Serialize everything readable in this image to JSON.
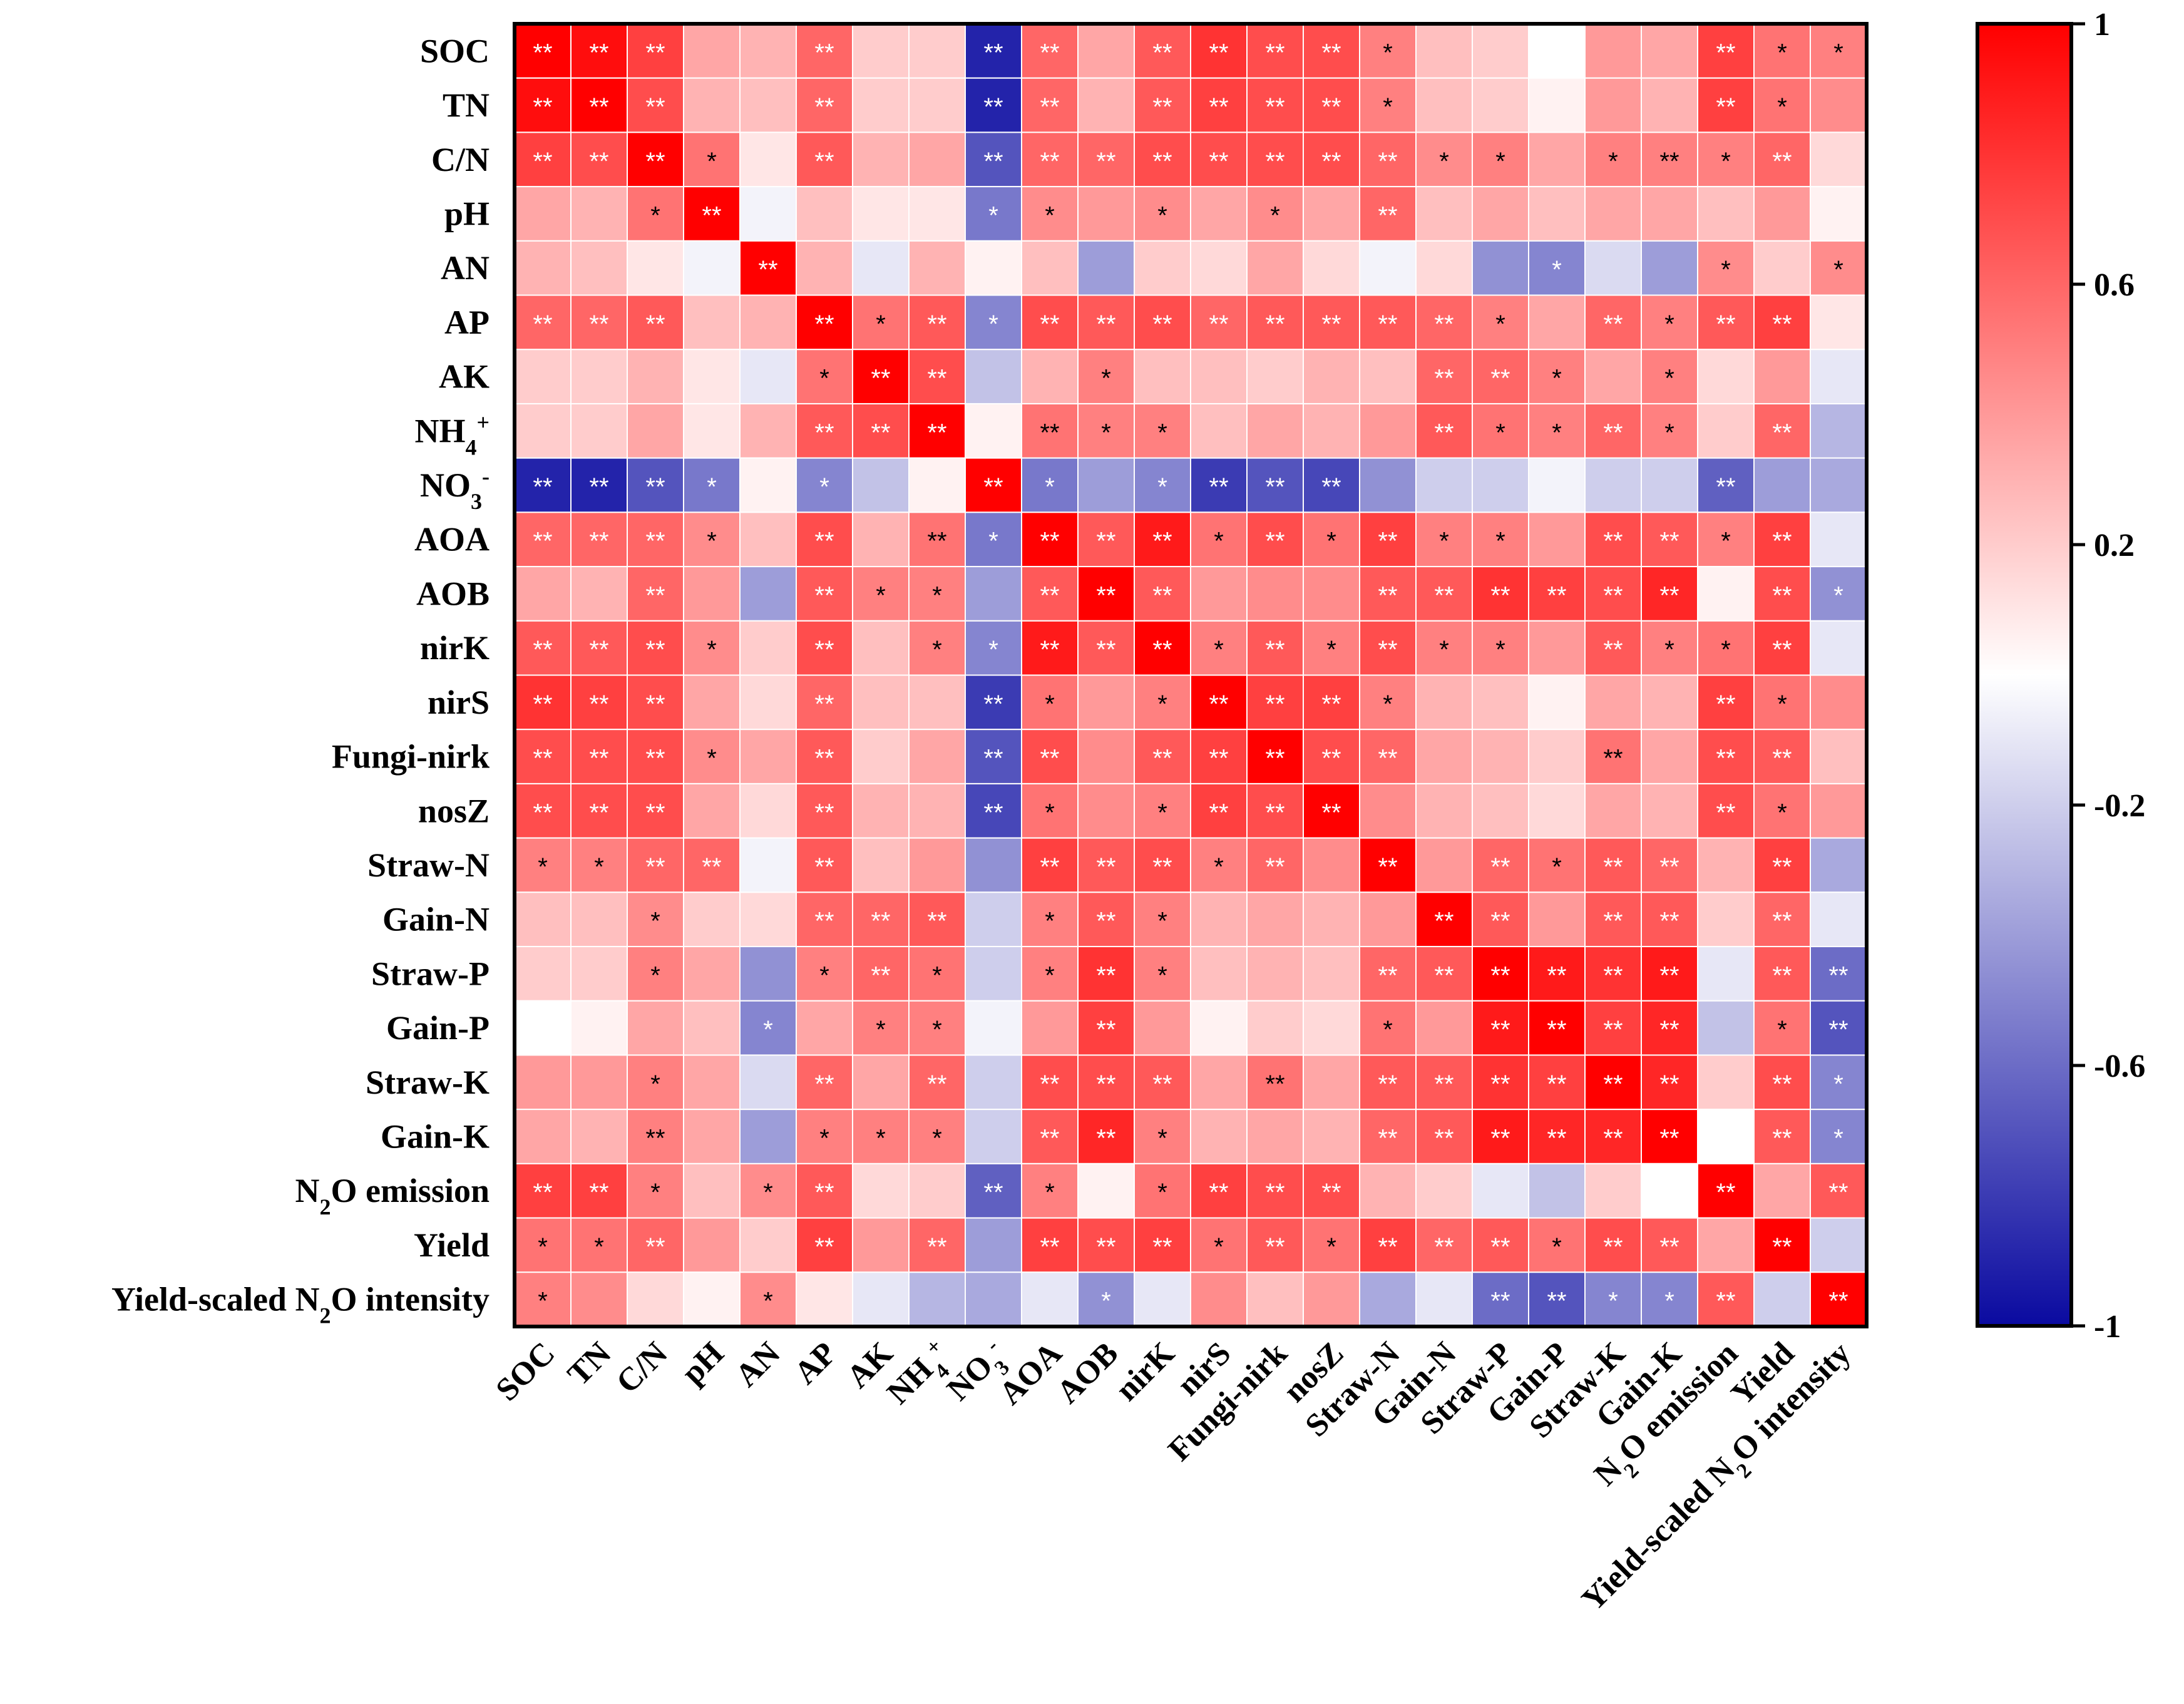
{
  "chart_data": {
    "type": "heatmap",
    "title": "",
    "variables": [
      {
        "key": "SOC",
        "label": "SOC"
      },
      {
        "key": "TN",
        "label": "TN"
      },
      {
        "key": "C/N",
        "label": "C/N"
      },
      {
        "key": "pH",
        "label": "pH"
      },
      {
        "key": "AN",
        "label": "AN"
      },
      {
        "key": "AP",
        "label": "AP"
      },
      {
        "key": "AK",
        "label": "AK"
      },
      {
        "key": "NH4+",
        "label": "NH",
        "sub": "4",
        "sup": "+"
      },
      {
        "key": "NO3-",
        "label": "NO",
        "sub": "3",
        "sup": "-"
      },
      {
        "key": "AOA",
        "label": "AOA"
      },
      {
        "key": "AOB",
        "label": "AOB"
      },
      {
        "key": "nirK",
        "label": "nirK"
      },
      {
        "key": "nirS",
        "label": "nirS"
      },
      {
        "key": "Fungi-nirk",
        "label": "Fungi-nirk"
      },
      {
        "key": "nosZ",
        "label": "nosZ"
      },
      {
        "key": "Straw-N",
        "label": "Straw-N"
      },
      {
        "key": "Gain-N",
        "label": "Gain-N"
      },
      {
        "key": "Straw-P",
        "label": "Straw-P"
      },
      {
        "key": "Gain-P",
        "label": "Gain-P"
      },
      {
        "key": "Straw-K",
        "label": "Straw-K"
      },
      {
        "key": "Gain-K",
        "label": "Gain-K"
      },
      {
        "key": "N2O emission",
        "label": "N",
        "sub": "2",
        "after": "O emission"
      },
      {
        "key": "Yield",
        "label": "Yield"
      },
      {
        "key": "Yield-scaled N2O intensity",
        "label": "Yield-scaled N",
        "sub": "2",
        "after": "O intensity"
      }
    ],
    "values": [
      [
        1,
        0.95,
        0.75,
        0.35,
        0.3,
        0.6,
        0.2,
        0.2,
        -0.9,
        0.6,
        0.35,
        0.65,
        0.8,
        0.7,
        0.7,
        0.5,
        0.25,
        0.2,
        0.0,
        0.4,
        0.35,
        0.75,
        0.55,
        0.5
      ],
      [
        0.95,
        1,
        0.7,
        0.3,
        0.25,
        0.6,
        0.2,
        0.2,
        -0.9,
        0.6,
        0.3,
        0.65,
        0.75,
        0.7,
        0.7,
        0.5,
        0.25,
        0.2,
        0.05,
        0.4,
        0.3,
        0.75,
        0.55,
        0.45
      ],
      [
        0.75,
        0.7,
        1,
        0.55,
        0.1,
        0.65,
        0.3,
        0.35,
        -0.7,
        0.6,
        0.6,
        0.7,
        0.7,
        0.7,
        0.7,
        0.6,
        0.45,
        0.5,
        0.35,
        0.5,
        0.5,
        0.5,
        0.6,
        0.15
      ],
      [
        0.35,
        0.3,
        0.55,
        1,
        -0.05,
        0.25,
        0.1,
        0.1,
        -0.55,
        0.45,
        0.4,
        0.45,
        0.35,
        0.45,
        0.35,
        0.6,
        0.25,
        0.35,
        0.25,
        0.35,
        0.35,
        0.25,
        0.4,
        0.05
      ],
      [
        0.3,
        0.25,
        0.1,
        -0.05,
        1,
        0.3,
        -0.1,
        0.3,
        0.05,
        0.25,
        -0.4,
        0.2,
        0.15,
        0.35,
        0.15,
        -0.05,
        0.15,
        -0.45,
        -0.5,
        -0.15,
        -0.4,
        0.45,
        0.2,
        0.45
      ],
      [
        0.6,
        0.6,
        0.65,
        0.25,
        0.3,
        1,
        0.55,
        0.65,
        -0.5,
        0.7,
        0.65,
        0.7,
        0.6,
        0.65,
        0.65,
        0.65,
        0.6,
        0.5,
        0.35,
        0.6,
        0.5,
        0.65,
        0.75,
        0.1
      ],
      [
        0.2,
        0.2,
        0.3,
        0.1,
        -0.1,
        0.55,
        1,
        0.7,
        -0.25,
        0.3,
        0.5,
        0.25,
        0.25,
        0.2,
        0.3,
        0.25,
        0.6,
        0.6,
        0.5,
        0.35,
        0.5,
        0.15,
        0.4,
        -0.1
      ],
      [
        0.2,
        0.2,
        0.35,
        0.1,
        0.3,
        0.65,
        0.7,
        1,
        0.05,
        0.55,
        0.5,
        0.5,
        0.25,
        0.35,
        0.3,
        0.4,
        0.65,
        0.55,
        0.5,
        0.6,
        0.5,
        0.2,
        0.6,
        -0.3
      ],
      [
        -0.9,
        -0.9,
        -0.7,
        -0.55,
        0.05,
        -0.5,
        -0.25,
        0.05,
        1,
        -0.55,
        -0.4,
        -0.5,
        -0.8,
        -0.7,
        -0.75,
        -0.45,
        -0.2,
        -0.2,
        -0.05,
        -0.2,
        -0.2,
        -0.65,
        -0.4,
        -0.35
      ],
      [
        0.6,
        0.6,
        0.6,
        0.45,
        0.25,
        0.7,
        0.3,
        0.55,
        -0.55,
        1,
        0.65,
        0.9,
        0.55,
        0.7,
        0.55,
        0.75,
        0.5,
        0.5,
        0.4,
        0.7,
        0.65,
        0.5,
        0.75,
        -0.1
      ],
      [
        0.35,
        0.3,
        0.6,
        0.4,
        -0.4,
        0.65,
        0.5,
        0.5,
        -0.4,
        0.65,
        1,
        0.65,
        0.4,
        0.45,
        0.45,
        0.65,
        0.65,
        0.8,
        0.75,
        0.7,
        0.85,
        0.05,
        0.7,
        -0.45
      ],
      [
        0.65,
        0.65,
        0.7,
        0.45,
        0.2,
        0.7,
        0.25,
        0.5,
        -0.5,
        0.9,
        0.65,
        1,
        0.5,
        0.65,
        0.5,
        0.7,
        0.5,
        0.5,
        0.4,
        0.65,
        0.5,
        0.55,
        0.75,
        -0.1
      ],
      [
        0.8,
        0.75,
        0.7,
        0.35,
        0.15,
        0.6,
        0.25,
        0.25,
        -0.8,
        0.55,
        0.4,
        0.5,
        1,
        0.75,
        0.75,
        0.5,
        0.3,
        0.25,
        0.05,
        0.35,
        0.3,
        0.75,
        0.55,
        0.45
      ],
      [
        0.7,
        0.7,
        0.7,
        0.45,
        0.35,
        0.65,
        0.2,
        0.35,
        -0.7,
        0.7,
        0.45,
        0.65,
        0.75,
        1,
        0.7,
        0.6,
        0.35,
        0.3,
        0.2,
        0.55,
        0.35,
        0.7,
        0.65,
        0.25
      ],
      [
        0.7,
        0.7,
        0.7,
        0.35,
        0.15,
        0.65,
        0.3,
        0.3,
        -0.75,
        0.55,
        0.45,
        0.5,
        0.75,
        0.7,
        1,
        0.45,
        0.3,
        0.25,
        0.15,
        0.35,
        0.3,
        0.7,
        0.55,
        0.4
      ],
      [
        0.5,
        0.5,
        0.6,
        0.6,
        -0.05,
        0.65,
        0.25,
        0.4,
        -0.45,
        0.75,
        0.65,
        0.7,
        0.5,
        0.6,
        0.45,
        1,
        0.4,
        0.6,
        0.55,
        0.65,
        0.6,
        0.3,
        0.75,
        -0.35
      ],
      [
        0.25,
        0.25,
        0.45,
        0.2,
        0.15,
        0.6,
        0.6,
        0.65,
        -0.2,
        0.5,
        0.65,
        0.5,
        0.3,
        0.35,
        0.3,
        0.4,
        1,
        0.65,
        0.4,
        0.65,
        0.65,
        0.2,
        0.6,
        -0.1
      ],
      [
        0.2,
        0.2,
        0.5,
        0.35,
        -0.45,
        0.5,
        0.6,
        0.55,
        -0.2,
        0.5,
        0.8,
        0.5,
        0.25,
        0.3,
        0.25,
        0.6,
        0.65,
        1,
        0.9,
        0.8,
        0.9,
        -0.1,
        0.65,
        -0.6
      ],
      [
        0.0,
        0.05,
        0.35,
        0.25,
        -0.5,
        0.35,
        0.5,
        0.5,
        -0.05,
        0.4,
        0.75,
        0.4,
        0.05,
        0.2,
        0.15,
        0.55,
        0.4,
        0.9,
        1,
        0.75,
        0.85,
        -0.25,
        0.55,
        -0.7
      ],
      [
        0.4,
        0.4,
        0.5,
        0.35,
        -0.15,
        0.6,
        0.35,
        0.6,
        -0.2,
        0.7,
        0.7,
        0.65,
        0.35,
        0.55,
        0.35,
        0.65,
        0.65,
        0.8,
        0.75,
        1,
        0.85,
        0.2,
        0.7,
        -0.5
      ],
      [
        0.35,
        0.3,
        0.5,
        0.35,
        -0.4,
        0.5,
        0.5,
        0.5,
        -0.2,
        0.65,
        0.85,
        0.5,
        0.3,
        0.35,
        0.3,
        0.6,
        0.65,
        0.9,
        0.85,
        0.85,
        1,
        0.0,
        0.65,
        -0.5
      ],
      [
        0.75,
        0.75,
        0.5,
        0.25,
        0.45,
        0.65,
        0.15,
        0.2,
        -0.65,
        0.5,
        0.05,
        0.55,
        0.75,
        0.7,
        0.7,
        0.3,
        0.2,
        -0.1,
        -0.25,
        0.2,
        0.0,
        1,
        0.35,
        0.65
      ],
      [
        0.55,
        0.55,
        0.6,
        0.4,
        0.2,
        0.75,
        0.4,
        0.6,
        -0.4,
        0.75,
        0.7,
        0.75,
        0.55,
        0.65,
        0.55,
        0.75,
        0.6,
        0.65,
        0.55,
        0.7,
        0.65,
        0.35,
        1,
        -0.2
      ],
      [
        0.5,
        0.45,
        0.15,
        0.05,
        0.45,
        0.1,
        -0.1,
        -0.3,
        -0.35,
        -0.1,
        -0.45,
        -0.1,
        0.45,
        0.25,
        0.4,
        -0.35,
        -0.1,
        -0.6,
        -0.7,
        -0.5,
        -0.5,
        0.65,
        -0.2,
        1
      ]
    ],
    "significance": [
      [
        "**",
        "**",
        "**",
        "",
        "",
        "**",
        "",
        "",
        "**",
        "**",
        "",
        "**",
        "**",
        "**",
        "**",
        "*",
        "",
        "",
        "",
        "",
        "",
        "**",
        "*",
        "*"
      ],
      [
        "**",
        "**",
        "**",
        "",
        "",
        "**",
        "",
        "",
        "**",
        "**",
        "",
        "**",
        "**",
        "**",
        "**",
        "*",
        "",
        "",
        "",
        "",
        "",
        "**",
        "*",
        ""
      ],
      [
        "**",
        "**",
        "**",
        "*",
        "",
        "**",
        "",
        "",
        "**",
        "**",
        "**",
        "**",
        "**",
        "**",
        "**",
        "**",
        "*",
        "*",
        "",
        "*",
        "**",
        "*",
        "**",
        ""
      ],
      [
        "",
        "",
        "*",
        "**",
        "",
        "",
        "",
        "",
        "*",
        "*",
        "",
        "*",
        "",
        "*",
        "",
        "**",
        "",
        "",
        "",
        "",
        "",
        "",
        "",
        ""
      ],
      [
        "",
        "",
        "",
        "",
        "**",
        "",
        "",
        "",
        "",
        "",
        "",
        "",
        "",
        "",
        "",
        "",
        "",
        "",
        "*",
        "",
        "",
        "*",
        "",
        "*"
      ],
      [
        "**",
        "**",
        "**",
        "",
        "",
        "**",
        "*",
        "**",
        "*",
        "**",
        "**",
        "**",
        "**",
        "**",
        "**",
        "**",
        "**",
        "*",
        "",
        "**",
        "*",
        "**",
        "**",
        ""
      ],
      [
        "",
        "",
        "",
        "",
        "",
        "*",
        "**",
        "**",
        "",
        "",
        "*",
        "",
        "",
        "",
        "",
        "",
        "**",
        "**",
        "*",
        "",
        "*",
        "",
        "",
        ""
      ],
      [
        "",
        "",
        "",
        "",
        "",
        "**",
        "**",
        "**",
        "",
        "**",
        "*",
        "*",
        "",
        "",
        "",
        "",
        "**",
        "*",
        "*",
        "**",
        "*",
        "",
        "**",
        ""
      ],
      [
        "**",
        "**",
        "**",
        "*",
        "",
        "*",
        "",
        "",
        "**",
        "*",
        "",
        "*",
        "**",
        "**",
        "**",
        "",
        "",
        "",
        "",
        "",
        "",
        "**",
        "",
        ""
      ],
      [
        "**",
        "**",
        "**",
        "*",
        "",
        "**",
        "",
        "**",
        "*",
        "**",
        "**",
        "**",
        "*",
        "**",
        "*",
        "**",
        "*",
        "*",
        "",
        "**",
        "**",
        "*",
        "**",
        ""
      ],
      [
        "",
        "",
        "**",
        "",
        "",
        "**",
        "*",
        "*",
        "",
        "**",
        "**",
        "**",
        "",
        "",
        "",
        "**",
        "**",
        "**",
        "**",
        "**",
        "**",
        "",
        "**",
        "*"
      ],
      [
        "**",
        "**",
        "**",
        "*",
        "",
        "**",
        "",
        "*",
        "*",
        "**",
        "**",
        "**",
        "*",
        "**",
        "*",
        "**",
        "*",
        "*",
        "",
        "**",
        "*",
        "*",
        "**",
        ""
      ],
      [
        "**",
        "**",
        "**",
        "",
        "",
        "**",
        "",
        "",
        "**",
        "*",
        "",
        "*",
        "**",
        "**",
        "**",
        "*",
        "",
        "",
        "",
        "",
        "",
        "**",
        "*",
        ""
      ],
      [
        "**",
        "**",
        "**",
        "*",
        "",
        "**",
        "",
        "",
        "**",
        "**",
        "",
        "**",
        "**",
        "**",
        "**",
        "**",
        "",
        "",
        "",
        "**",
        "",
        "**",
        "**",
        ""
      ],
      [
        "**",
        "**",
        "**",
        "",
        "",
        "**",
        "",
        "",
        "**",
        "*",
        "",
        "*",
        "**",
        "**",
        "**",
        "",
        "",
        "",
        "",
        "",
        "",
        "**",
        "*",
        ""
      ],
      [
        "*",
        "*",
        "**",
        "**",
        "",
        "**",
        "",
        "",
        "",
        "**",
        "**",
        "**",
        "*",
        "**",
        "",
        "**",
        "",
        "**",
        "*",
        "**",
        "**",
        "",
        "**",
        ""
      ],
      [
        "",
        "",
        "*",
        "",
        "",
        "**",
        "**",
        "**",
        "",
        "*",
        "**",
        "*",
        "",
        "",
        "",
        "",
        "**",
        "**",
        "",
        "**",
        "**",
        "",
        "**",
        ""
      ],
      [
        "",
        "",
        "*",
        "",
        "",
        "*",
        "**",
        "*",
        "",
        "*",
        "**",
        "*",
        "",
        "",
        "",
        "**",
        "**",
        "**",
        "**",
        "**",
        "**",
        "",
        "**",
        "**"
      ],
      [
        "",
        "",
        "",
        "",
        "*",
        "",
        "*",
        "*",
        "",
        "",
        "**",
        "",
        "",
        "",
        "",
        "*",
        "",
        "**",
        "**",
        "**",
        "**",
        "",
        "*",
        "**"
      ],
      [
        "",
        "",
        "*",
        "",
        "",
        "**",
        "",
        "**",
        "",
        "**",
        "**",
        "**",
        "",
        "**",
        "",
        "**",
        "**",
        "**",
        "**",
        "**",
        "**",
        "",
        "**",
        "*"
      ],
      [
        "",
        "",
        "**",
        "",
        "",
        "*",
        "*",
        "*",
        "",
        "**",
        "**",
        "*",
        "",
        "",
        "",
        "**",
        "**",
        "**",
        "**",
        "**",
        "**",
        "",
        "**",
        "*"
      ],
      [
        "**",
        "**",
        "*",
        "",
        "*",
        "**",
        "",
        "",
        "**",
        "*",
        "",
        "*",
        "**",
        "**",
        "**",
        "",
        "",
        "",
        "",
        "",
        "",
        "**",
        "",
        "**"
      ],
      [
        "*",
        "*",
        "**",
        "",
        "",
        "**",
        "",
        "**",
        "",
        "**",
        "**",
        "**",
        "*",
        "**",
        "*",
        "**",
        "**",
        "**",
        "*",
        "**",
        "**",
        "",
        "**",
        ""
      ],
      [
        "*",
        "",
        "",
        "",
        "*",
        "",
        "",
        "",
        "",
        "",
        "*",
        "",
        "",
        "",
        "",
        "",
        "",
        "**",
        "**",
        "*",
        "*",
        "**",
        "",
        "**"
      ]
    ],
    "colorbar": {
      "range": [
        -1,
        1
      ],
      "ticks": [
        "1",
        "0.6",
        "0.2",
        "-0.2",
        "-0.6",
        "-1"
      ],
      "low_color": "#0a0aa0",
      "mid_color": "#ffffff",
      "high_color": "#ff0000"
    },
    "xlabel": "",
    "ylabel": ""
  }
}
